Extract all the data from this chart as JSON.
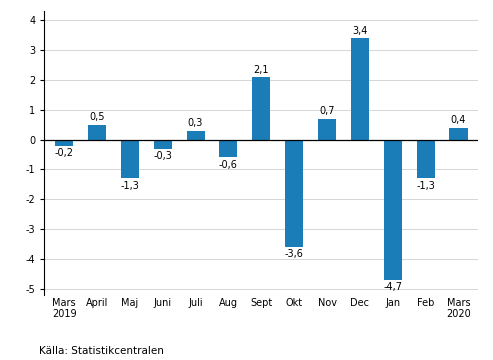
{
  "categories": [
    "Mars\n2019",
    "April",
    "Maj",
    "Juni",
    "Juli",
    "Aug",
    "Sept",
    "Okt",
    "Nov",
    "Dec",
    "Jan",
    "Feb",
    "Mars\n2020"
  ],
  "values": [
    -0.2,
    0.5,
    -1.3,
    -0.3,
    0.3,
    -0.6,
    2.1,
    -3.6,
    0.7,
    3.4,
    -4.7,
    -1.3,
    0.4
  ],
  "bar_color": "#1b7db8",
  "ylim": [
    -5.2,
    4.3
  ],
  "yticks": [
    -5,
    -4,
    -3,
    -2,
    -1,
    0,
    1,
    2,
    3,
    4
  ],
  "background_color": "#ffffff",
  "source_text": "Källa: Statistikcentralen",
  "label_fontsize": 7,
  "tick_fontsize": 7,
  "source_fontsize": 7.5,
  "bar_width": 0.55
}
